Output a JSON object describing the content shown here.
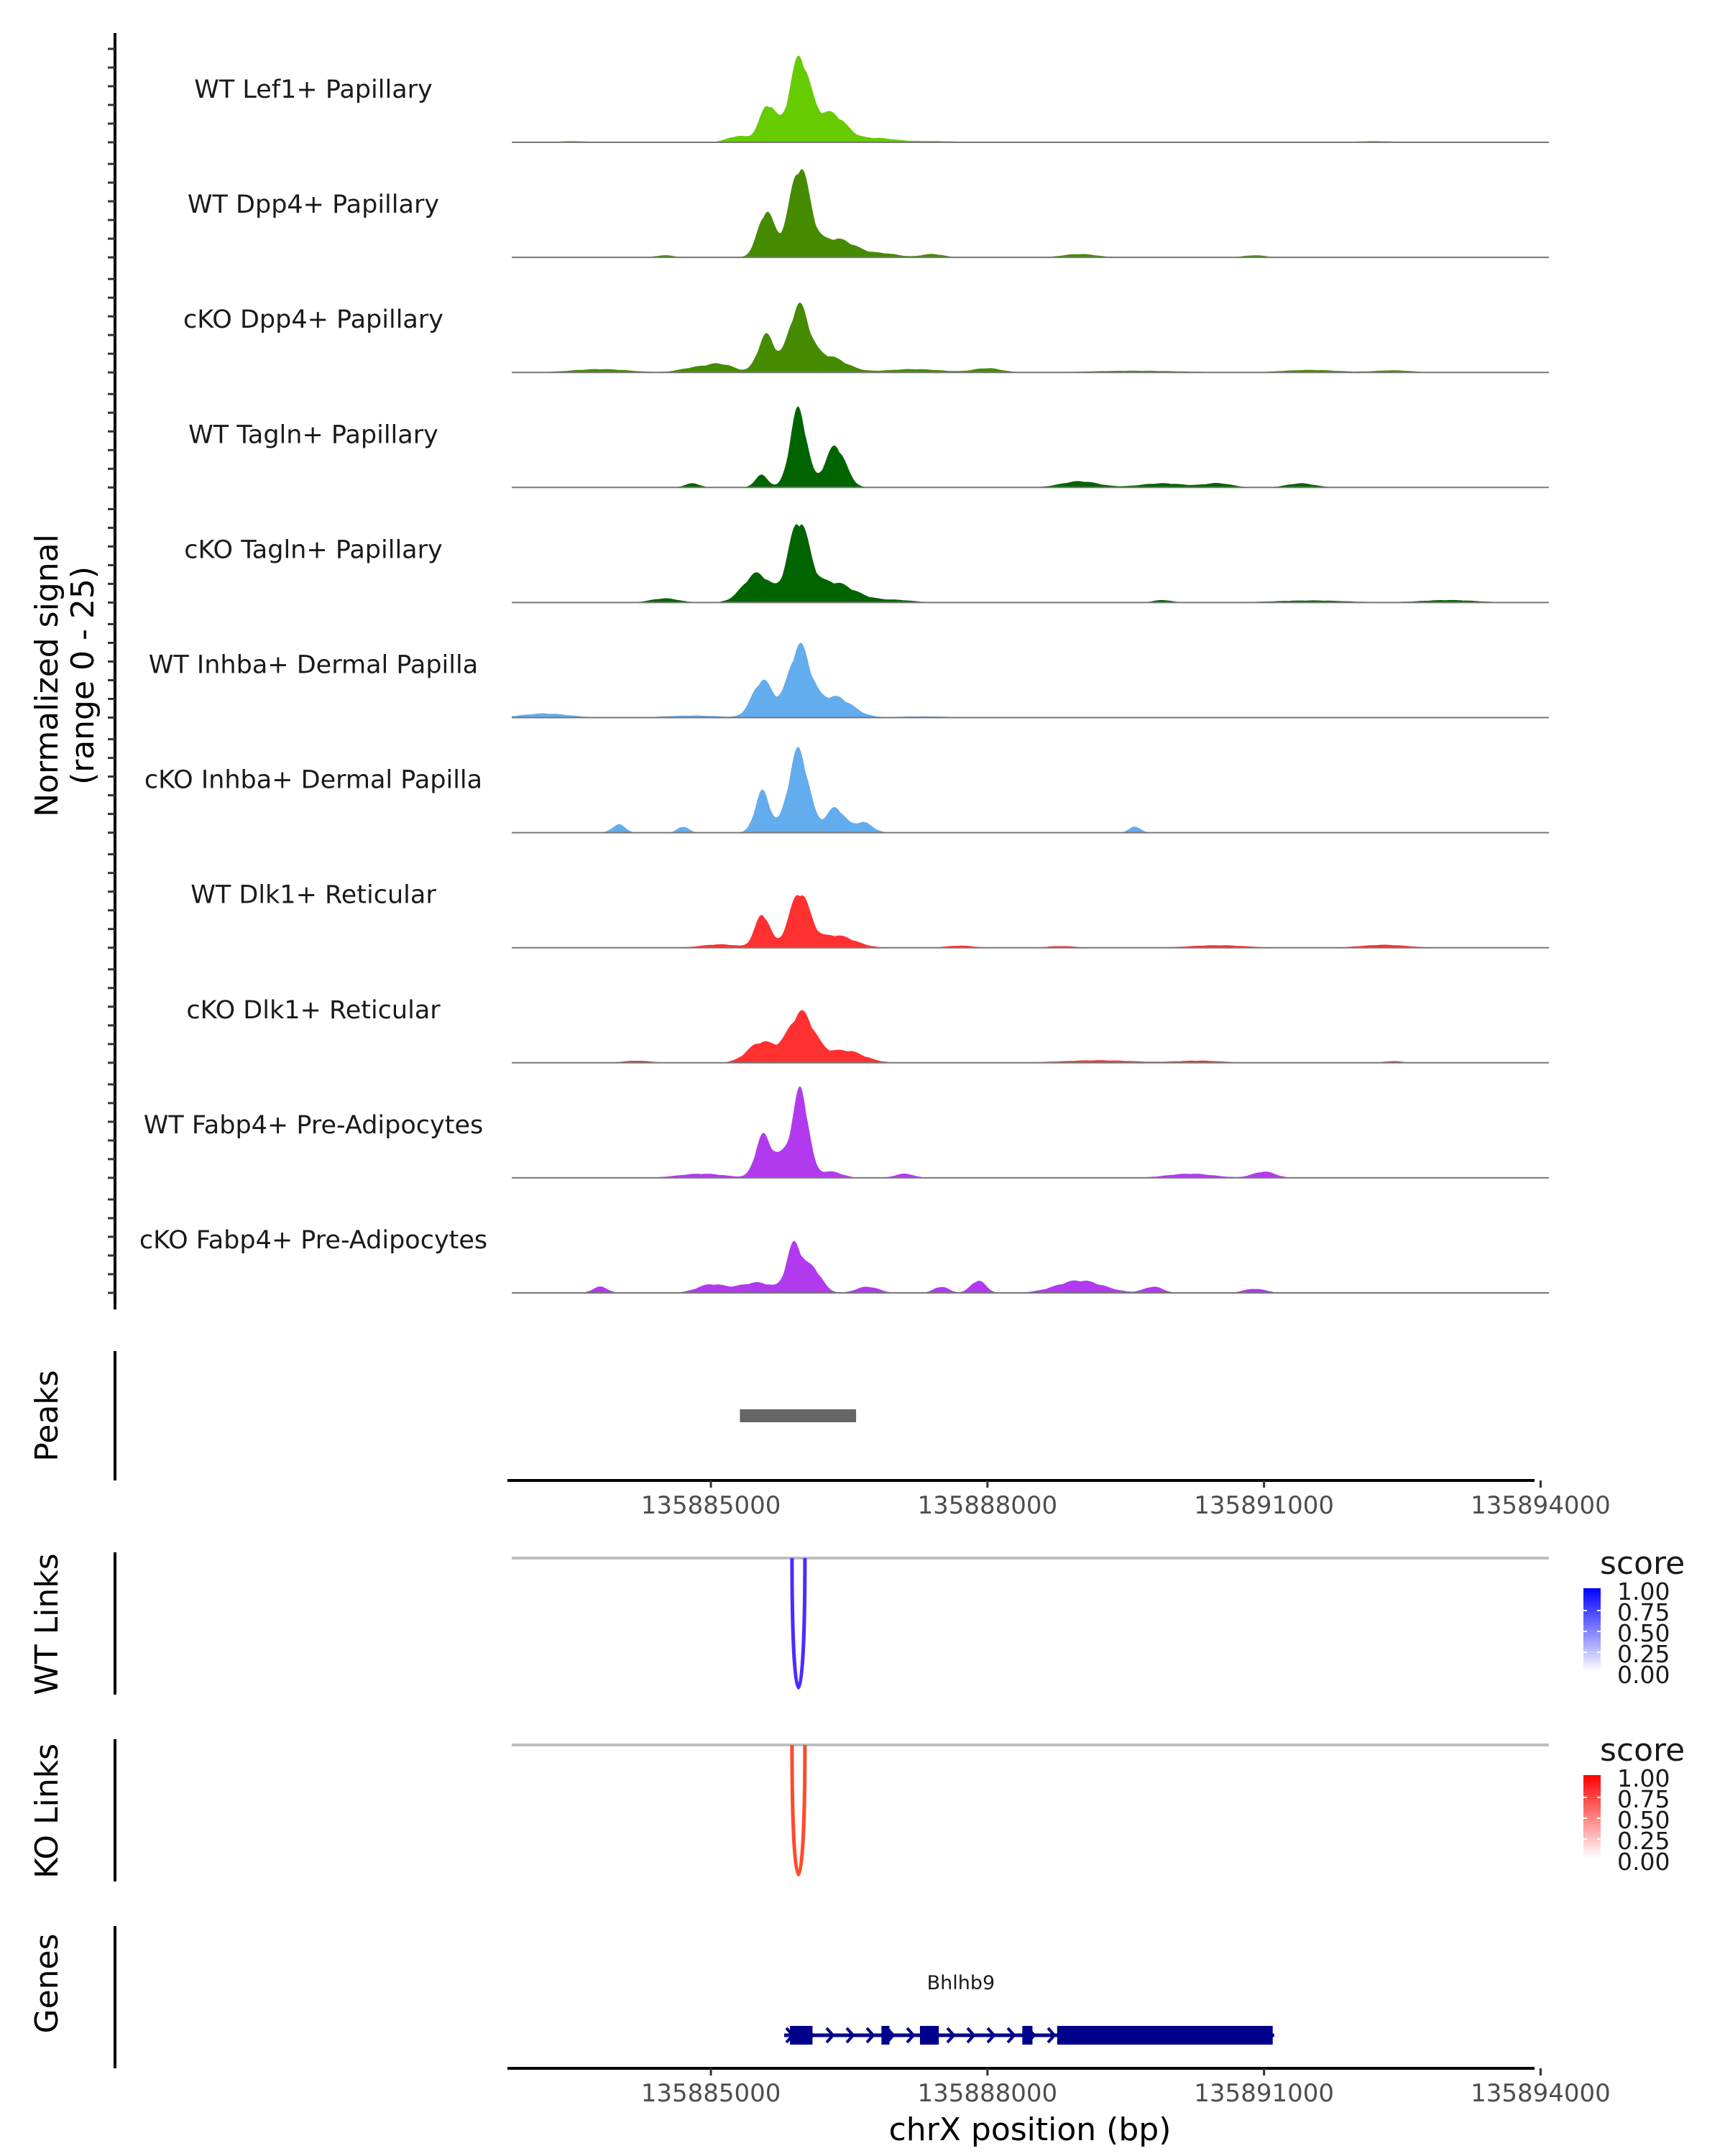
{
  "chart_data": {
    "type": "area",
    "title": "",
    "xlabel": "chrX position (bp)",
    "ylabel": "Normalized signal\n(range 0 - 25)",
    "ylabel_lines": [
      "Normalized signal",
      "(range 0 - 25)"
    ],
    "ylim": [
      0,
      25
    ],
    "xlim": [
      135882840,
      135894090
    ],
    "x_ticks": [
      135885000,
      135888000,
      135891000,
      135894000
    ],
    "x_tick_labels": [
      "135885000",
      "135888000",
      "135891000",
      "135894000"
    ],
    "coverage_tracks": [
      {
        "name": "WT Lef1+ Papillary",
        "color": "#66CC00",
        "peaks": [
          [
            135885620,
            9,
            90
          ],
          [
            135885960,
            20,
            110
          ],
          [
            135886300,
            7,
            160
          ],
          [
            135886800,
            1,
            200
          ],
          [
            135885300,
            1.5,
            120
          ],
          [
            135883500,
            0.3,
            150
          ],
          [
            135887400,
            0.3,
            250
          ],
          [
            135892200,
            0.3,
            200
          ]
        ]
      },
      {
        "name": "WT Dpp4+ Papillary",
        "color": "#458B00",
        "peaks": [
          [
            135885600,
            11,
            90
          ],
          [
            135885960,
            21,
            110
          ],
          [
            135886350,
            4.5,
            220
          ],
          [
            135886900,
            0.8,
            150
          ],
          [
            135884500,
            0.5,
            100
          ],
          [
            135887400,
            0.8,
            120
          ],
          [
            135889000,
            0.8,
            180
          ],
          [
            135890900,
            0.5,
            120
          ]
        ]
      },
      {
        "name": "cKO Dpp4+ Papillary",
        "color": "#458B00",
        "peaks": [
          [
            135885600,
            9,
            90
          ],
          [
            135885950,
            15,
            110
          ],
          [
            135886250,
            4,
            200
          ],
          [
            135885100,
            2,
            150
          ],
          [
            135883800,
            0.8,
            300
          ],
          [
            135884800,
            1,
            150
          ],
          [
            135887200,
            0.8,
            300
          ],
          [
            135888000,
            1,
            150
          ],
          [
            135889600,
            0.4,
            500
          ],
          [
            135891500,
            0.6,
            300
          ],
          [
            135892400,
            0.5,
            200
          ]
        ]
      },
      {
        "name": "WT Tagln+ Papillary",
        "color": "#006400",
        "peaks": [
          [
            135885550,
            3,
            70
          ],
          [
            135885950,
            19,
            90
          ],
          [
            135886350,
            10,
            110
          ],
          [
            135884800,
            1,
            80
          ],
          [
            135889000,
            1.5,
            200
          ],
          [
            135889900,
            1,
            250
          ],
          [
            135890500,
            1,
            150
          ],
          [
            135891400,
            1,
            150
          ]
        ]
      },
      {
        "name": "cKO Tagln+ Papillary",
        "color": "#006400",
        "peaks": [
          [
            135885500,
            7,
            150
          ],
          [
            135885950,
            18,
            110
          ],
          [
            135886300,
            5,
            250
          ],
          [
            135884500,
            1,
            150
          ],
          [
            135887000,
            0.6,
            200
          ],
          [
            135889900,
            0.6,
            100
          ],
          [
            135891500,
            0.5,
            400
          ],
          [
            135893000,
            0.6,
            300
          ]
        ]
      },
      {
        "name": "WT Inhba+ Dermal Papilla",
        "color": "#63ACEE",
        "peaks": [
          [
            135885560,
            9,
            110
          ],
          [
            135885960,
            17,
            120
          ],
          [
            135886350,
            5,
            180
          ],
          [
            135883200,
            1,
            250
          ],
          [
            135884800,
            0.5,
            300
          ],
          [
            135887300,
            0.3,
            300
          ]
        ]
      },
      {
        "name": "cKO Inhba+ Dermal Papilla",
        "color": "#63ACEE",
        "peaks": [
          [
            135885560,
            10,
            80
          ],
          [
            135885950,
            20,
            110
          ],
          [
            135886350,
            6,
            100
          ],
          [
            135886650,
            2.5,
            100
          ],
          [
            135884000,
            2,
            70
          ],
          [
            135884700,
            1.5,
            60
          ],
          [
            135889600,
            1.5,
            60
          ]
        ]
      },
      {
        "name": "WT Dlk1+ Reticular",
        "color": "#FF3030",
        "peaks": [
          [
            135885560,
            8,
            80
          ],
          [
            135885960,
            13,
            110
          ],
          [
            135886350,
            3,
            200
          ],
          [
            135885100,
            0.8,
            200
          ],
          [
            135887700,
            0.5,
            150
          ],
          [
            135888800,
            0.4,
            150
          ],
          [
            135890500,
            0.6,
            300
          ],
          [
            135892300,
            0.7,
            250
          ]
        ]
      },
      {
        "name": "cKO Dlk1+ Reticular",
        "color": "#FF3030",
        "peaks": [
          [
            135885550,
            5,
            150
          ],
          [
            135885980,
            12,
            140
          ],
          [
            135886450,
            3,
            200
          ],
          [
            135884200,
            0.5,
            150
          ],
          [
            135889200,
            0.6,
            400
          ],
          [
            135890300,
            0.5,
            250
          ],
          [
            135892400,
            0.4,
            100
          ]
        ]
      },
      {
        "name": "WT Fabp4+ Pre-Adipocytes",
        "color": "#B23AEE",
        "peaks": [
          [
            135885560,
            9,
            80
          ],
          [
            135885980,
            18,
            80
          ],
          [
            135885820,
            6,
            150
          ],
          [
            135886300,
            1.5,
            120
          ],
          [
            135887100,
            1,
            100
          ],
          [
            135884900,
            1,
            250
          ],
          [
            135890200,
            1,
            250
          ],
          [
            135891000,
            1.5,
            120
          ]
        ]
      },
      {
        "name": "cKO Fabp4+ Pre-Adipocytes",
        "color": "#B23AEE",
        "peaks": [
          [
            135885900,
            11,
            80
          ],
          [
            135886100,
            6,
            100
          ],
          [
            135885500,
            2.5,
            200
          ],
          [
            135883800,
            1.5,
            80
          ],
          [
            135885000,
            2,
            150
          ],
          [
            135886700,
            1.5,
            120
          ],
          [
            135887500,
            1.5,
            80
          ],
          [
            135887900,
            3,
            80
          ],
          [
            135889000,
            3,
            250
          ],
          [
            135889800,
            1.5,
            100
          ],
          [
            135890900,
            1,
            120
          ]
        ]
      }
    ],
    "peaks_track": {
      "label": "Peaks",
      "color": "#666666",
      "regions": [
        [
          135885315,
          135886575
        ]
      ]
    },
    "link_tracks": [
      {
        "label": "WT Links",
        "color": "#4D2BFF",
        "links": [
          {
            "start": 135885880,
            "end": 135886020,
            "score": 0.85
          }
        ],
        "legend": {
          "title": "score",
          "low": "#FFFFFF",
          "high": "#0000FF",
          "ticks": [
            "1.00",
            "0.75",
            "0.50",
            "0.25",
            "0.00"
          ]
        }
      },
      {
        "label": "KO Links",
        "color": "#FF4A2E",
        "links": [
          {
            "start": 135885880,
            "end": 135886020,
            "score": 0.85
          }
        ],
        "legend": {
          "title": "score",
          "low": "#FFFFFF",
          "high": "#FF0000",
          "ticks": [
            "1.00",
            "0.75",
            "0.50",
            "0.25",
            "0.00"
          ]
        }
      }
    ],
    "gene_track": {
      "label": "Genes",
      "color": "#00008B",
      "genes": [
        {
          "name": "Bhlhb9",
          "strand": "+",
          "start": 135885795,
          "end": 135891110,
          "exons": [
            [
              135885858,
              135886102
            ],
            [
              135886850,
              135886937
            ],
            [
              135887268,
              135887472
            ],
            [
              135888378,
              135888488
            ],
            [
              135888756,
              135891094
            ]
          ]
        }
      ]
    }
  }
}
